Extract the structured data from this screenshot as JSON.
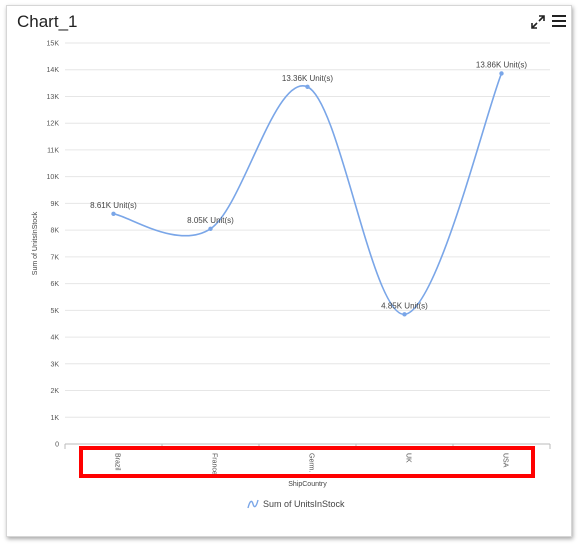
{
  "panel": {
    "title": "Chart_1",
    "expand_icon": "expand-diagonal-icon",
    "menu_icon": "hamburger-menu-icon"
  },
  "highlight_color": "#ff0000",
  "chart_data": {
    "type": "line",
    "smooth": true,
    "categories": [
      "Brazil",
      "France",
      "Germ.",
      "UK",
      "USA"
    ],
    "series": [
      {
        "name": "Sum of UnitsInStock",
        "color": "#7aa6e8",
        "values": [
          8610,
          8050,
          13360,
          4850,
          13860
        ],
        "labels": [
          "8.61K Unit(s)",
          "8.05K Unit(s)",
          "13.36K Unit(s)",
          "4.85K Unit(s)",
          "13.86K Unit(s)"
        ]
      }
    ],
    "xlabel": "ShipCountry",
    "ylabel": "Sum of UnitsInStock",
    "ylim": [
      0,
      15000
    ],
    "yticks": [
      0,
      1000,
      2000,
      3000,
      4000,
      5000,
      6000,
      7000,
      8000,
      9000,
      10000,
      11000,
      12000,
      13000,
      14000,
      15000
    ],
    "ytick_labels": [
      "0",
      "1K",
      "2K",
      "3K",
      "4K",
      "5K",
      "6K",
      "7K",
      "8K",
      "9K",
      "10K",
      "11K",
      "12K",
      "13K",
      "14K",
      "15K"
    ],
    "grid": true,
    "legend": "bottom"
  }
}
